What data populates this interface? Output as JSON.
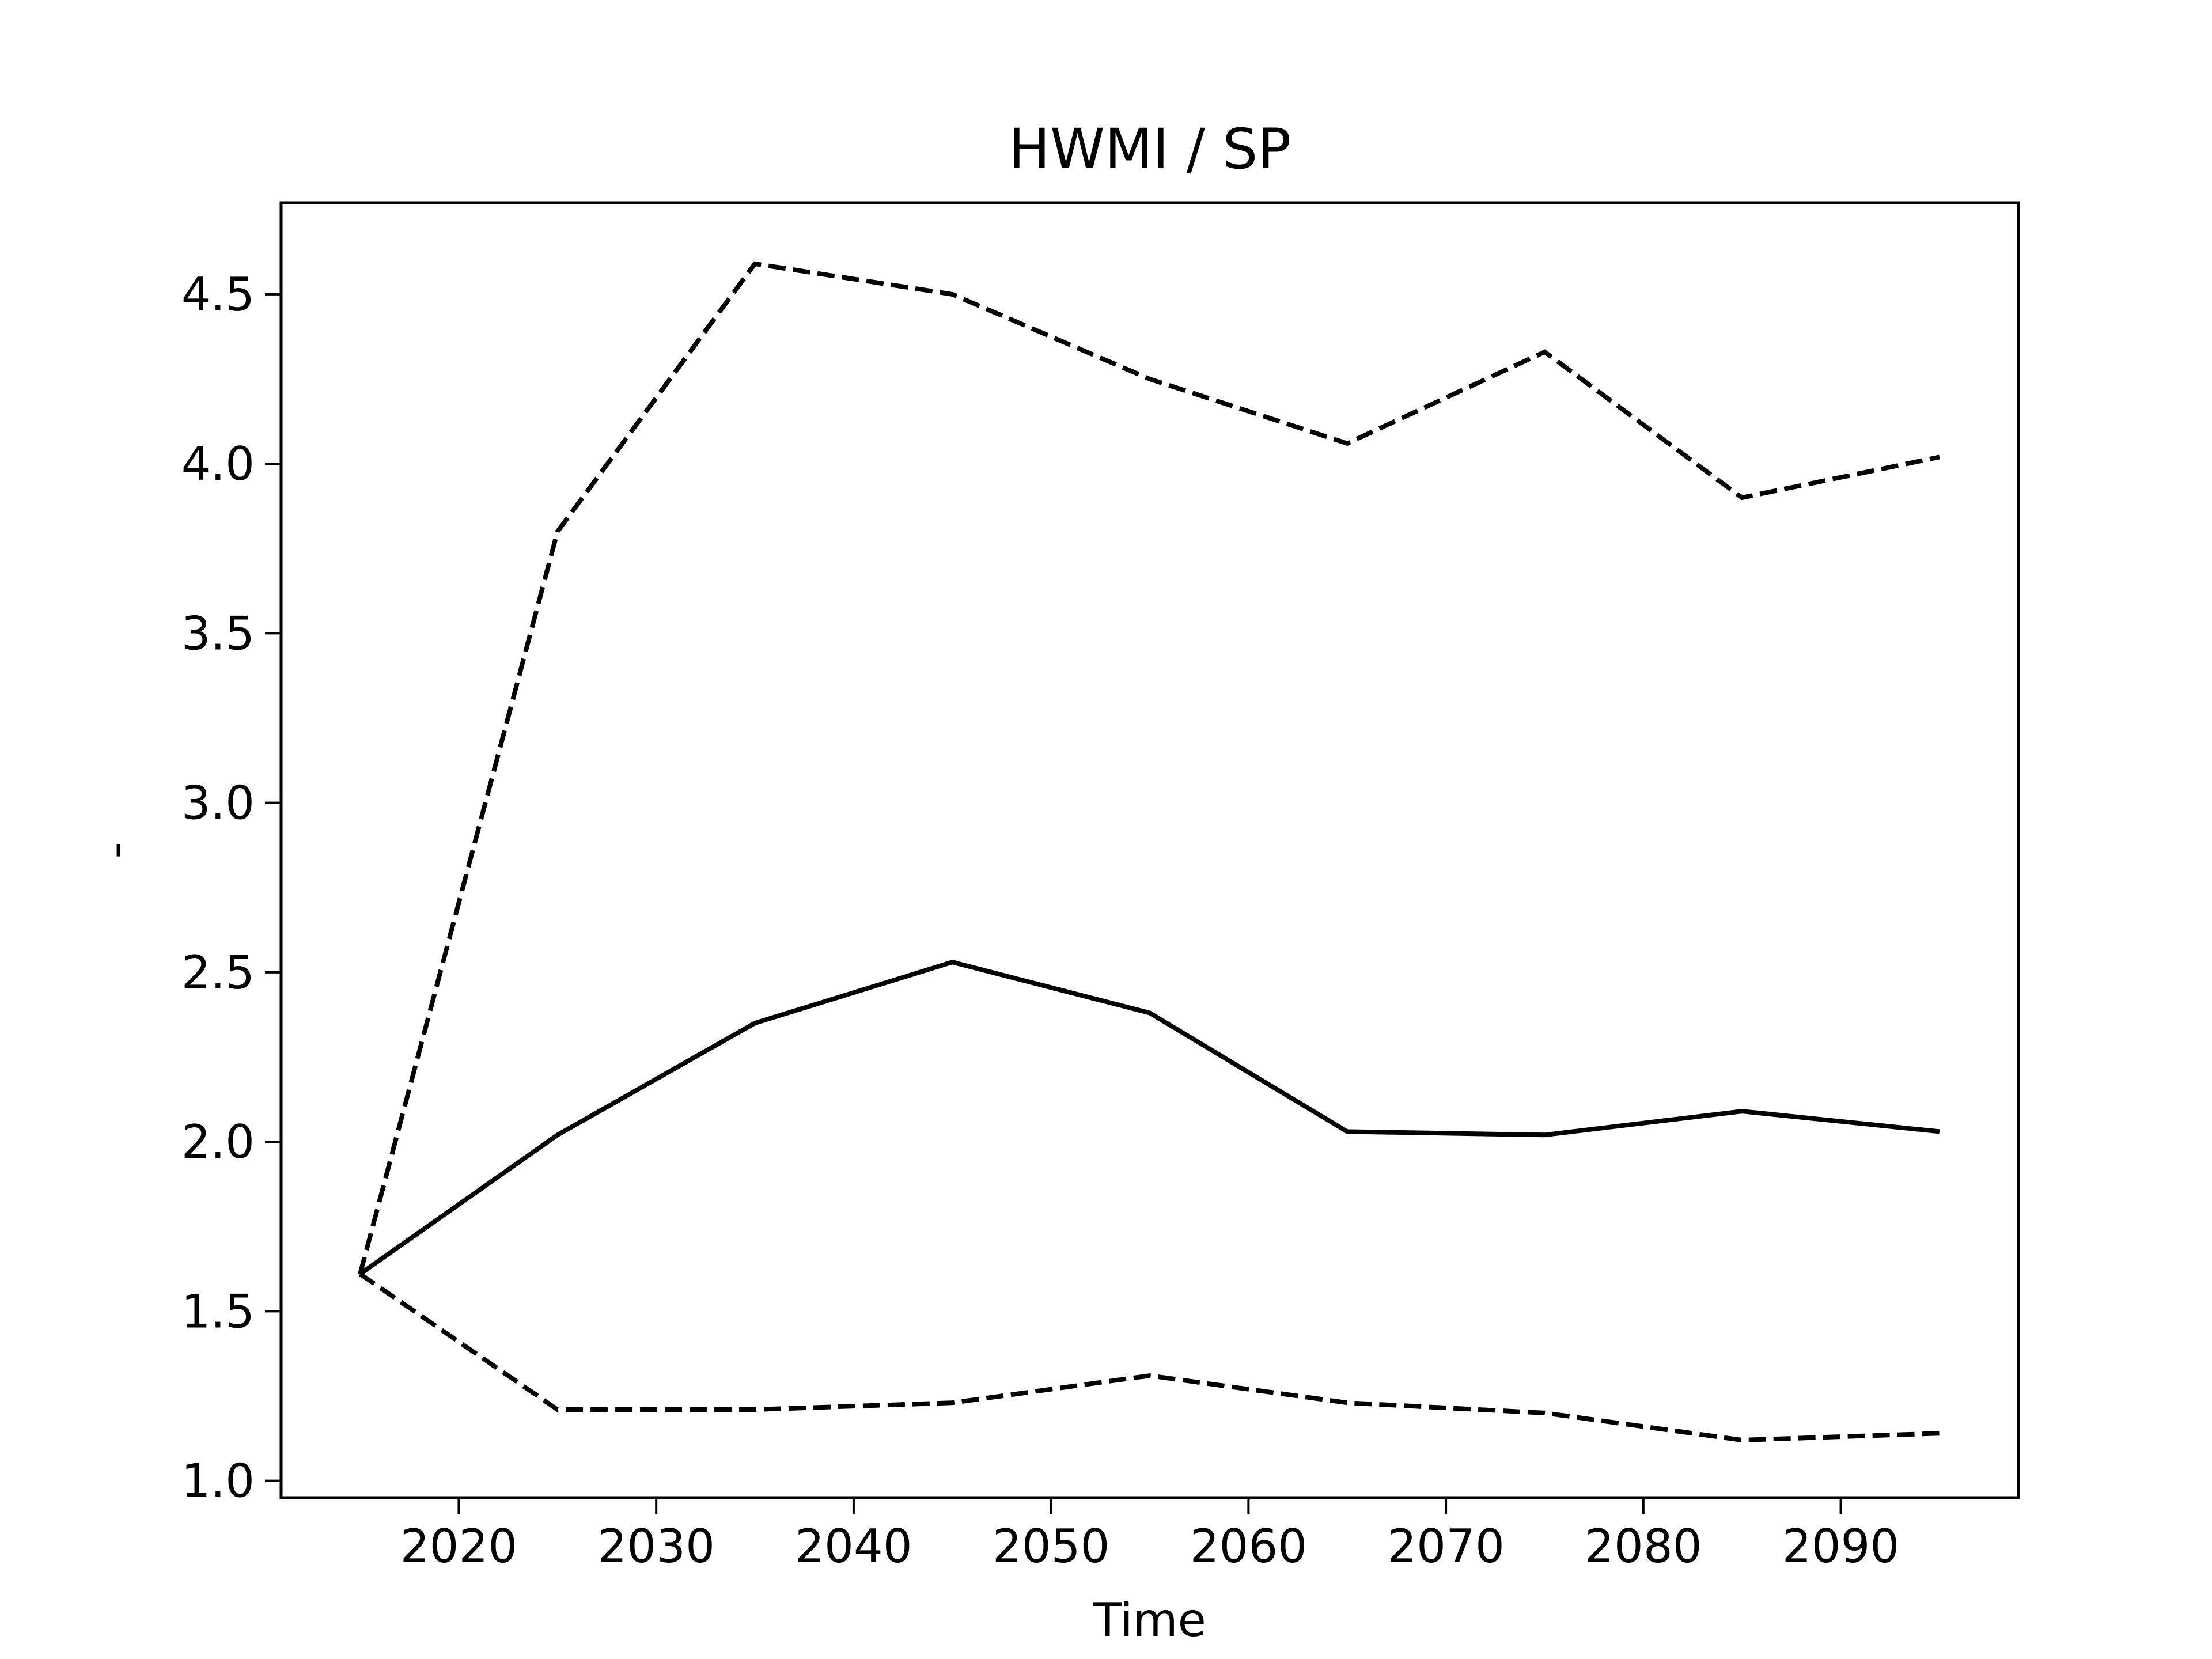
{
  "chart_data": {
    "type": "line",
    "title": "HWMI / SP",
    "xlabel": "Time",
    "ylabel": "-",
    "xlim": [
      2011,
      2099
    ],
    "ylim": [
      0.95,
      4.77
    ],
    "xticks": [
      2020,
      2030,
      2040,
      2050,
      2060,
      2070,
      2080,
      2090
    ],
    "yticks": [
      1.0,
      1.5,
      2.0,
      2.5,
      3.0,
      3.5,
      4.0,
      4.5
    ],
    "ytick_labels": [
      "1.0",
      "1.5",
      "2.0",
      "2.5",
      "3.0",
      "3.5",
      "4.0",
      "4.5"
    ],
    "grid": false,
    "x": [
      2015,
      2025,
      2035,
      2045,
      2055,
      2065,
      2075,
      2085,
      2095
    ],
    "series": [
      {
        "style": "solid",
        "color": "#000000",
        "values": [
          1.61,
          2.02,
          2.35,
          2.53,
          2.38,
          2.03,
          2.02,
          2.09,
          2.03
        ]
      },
      {
        "style": "dashed",
        "color": "#000000",
        "values": [
          1.61,
          3.8,
          4.59,
          4.5,
          4.25,
          4.06,
          4.33,
          3.9,
          4.02
        ]
      },
      {
        "style": "dashed",
        "color": "#000000",
        "values": [
          1.61,
          1.21,
          1.21,
          1.23,
          1.31,
          1.23,
          1.2,
          1.12,
          1.14
        ]
      }
    ]
  }
}
